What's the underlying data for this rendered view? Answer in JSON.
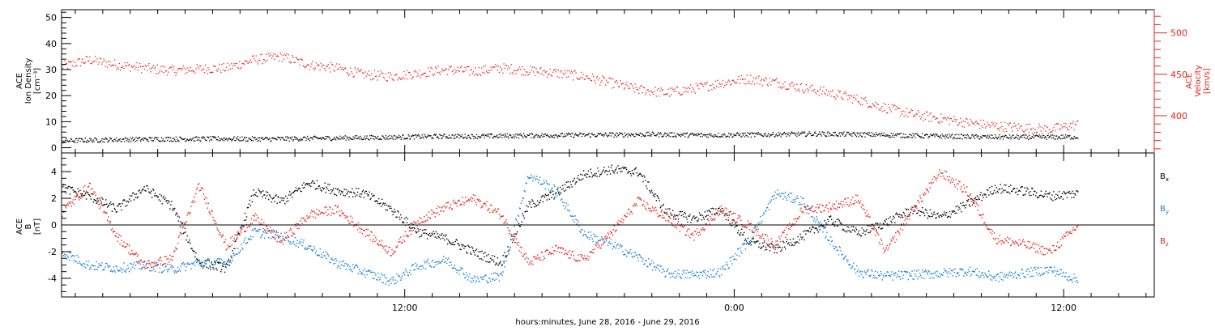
{
  "xaxis": {
    "label": "hours:minutes, June 28, 2016 - June 29, 2016",
    "range_hours": [
      -6.5,
      33.3
    ],
    "ticks": [
      {
        "value": 6,
        "label": "12:00"
      },
      {
        "value": 18,
        "label": "0:00"
      },
      {
        "value": 30,
        "label": "12:00"
      }
    ]
  },
  "colors": {
    "black": "#000000",
    "red": "#e8231d",
    "blue": "#1a7fd3"
  },
  "chart_data": [
    {
      "type": "scatter",
      "panel": "top",
      "ylabel_left": [
        "ACE",
        "Ion Density",
        "[cm⁻³]"
      ],
      "ylabel_right": [
        "ACE",
        "Velocity",
        "[km/s]"
      ],
      "ylim_left": [
        -2,
        53
      ],
      "ylim_right": [
        355,
        528
      ],
      "left_ticks": [
        0,
        10,
        20,
        30,
        40,
        50
      ],
      "right_ticks": [
        400,
        450,
        500
      ],
      "series": [
        {
          "axis": "left",
          "color": "#000000",
          "x": [
            -6.5,
            -5,
            -3,
            -1,
            1,
            3,
            5,
            7,
            9,
            11,
            13,
            15,
            17,
            19,
            21,
            23,
            25,
            27,
            29,
            30.5
          ],
          "y": [
            2.8,
            3.2,
            3.5,
            3.6,
            3.5,
            3.8,
            4.1,
            4.5,
            4.6,
            4.9,
            5.1,
            5.3,
            5.0,
            5.2,
            5.5,
            5.2,
            4.7,
            4.3,
            4.2,
            4.3
          ]
        },
        {
          "axis": "right",
          "color": "#e8231d",
          "x": [
            -6.5,
            -5.5,
            -4.5,
            -3.5,
            -2.5,
            -1.5,
            -0.5,
            0.5,
            1.5,
            2.5,
            3.5,
            4.5,
            5.5,
            6.5,
            7.5,
            8.5,
            9.5,
            10.5,
            11.5,
            12.5,
            13.5,
            14.5,
            15.5,
            16.5,
            17.5,
            18.5,
            19.5,
            20.5,
            21.5,
            22.5,
            23.5,
            24.5,
            25.5,
            26.5,
            27.5,
            28.5,
            29.5,
            30.5
          ],
          "y": [
            460,
            468,
            462,
            458,
            455,
            457,
            458,
            468,
            472,
            462,
            458,
            450,
            448,
            452,
            456,
            454,
            458,
            455,
            452,
            448,
            440,
            432,
            428,
            433,
            440,
            445,
            441,
            434,
            428,
            420,
            410,
            402,
            397,
            392,
            388,
            386,
            384,
            390
          ]
        }
      ]
    },
    {
      "type": "scatter",
      "panel": "bottom",
      "ylabel": [
        "ACE",
        "B",
        "[nT]"
      ],
      "ylim": [
        -5.4,
        5.4
      ],
      "ticks": [
        -4,
        -2,
        0,
        2,
        4
      ],
      "legend_placement": "right",
      "series": [
        {
          "name": "Bx",
          "color": "#000000",
          "x": [
            -6.5,
            -5.5,
            -4.5,
            -3.5,
            -2.5,
            -1.5,
            -0.5,
            0.5,
            1.5,
            2.5,
            3.5,
            4.5,
            5.5,
            6.5,
            7.5,
            8.5,
            9.5,
            10.5,
            11.5,
            12.5,
            13.5,
            14.5,
            15.5,
            16.5,
            17.5,
            18.5,
            19.5,
            20.5,
            21.5,
            22.5,
            23.5,
            24.5,
            25.5,
            26.5,
            27.5,
            28.5,
            29.5,
            30.5
          ],
          "y": [
            2.8,
            2.2,
            1.2,
            2.8,
            1.5,
            -2.8,
            -3.2,
            2.5,
            1.8,
            3.2,
            2.6,
            2.4,
            1.2,
            -0.5,
            -1.0,
            -2.0,
            -2.8,
            1.5,
            2.4,
            3.8,
            4.2,
            4.0,
            1.0,
            0.5,
            1.2,
            -1.2,
            -1.8,
            -0.8,
            0.4,
            -0.6,
            0.2,
            1.2,
            0.6,
            1.6,
            2.8,
            2.6,
            2.2,
            2.4
          ]
        },
        {
          "name": "By",
          "color": "#1a7fd3",
          "x": [
            -6.5,
            -5.5,
            -4.5,
            -3.5,
            -2.5,
            -1.5,
            -0.5,
            0.5,
            1.5,
            2.5,
            3.5,
            4.5,
            5.5,
            6.5,
            7.5,
            8.5,
            9.5,
            10.5,
            11.5,
            12.5,
            13.5,
            14.5,
            15.5,
            16.5,
            17.5,
            18.5,
            19.5,
            20.5,
            21.5,
            22.5,
            23.5,
            24.5,
            25.5,
            26.5,
            27.5,
            28.5,
            29.5,
            30.5
          ],
          "y": [
            -2.0,
            -3.0,
            -3.2,
            -3.0,
            -3.3,
            -2.8,
            -2.8,
            -0.5,
            -0.8,
            -1.6,
            -2.8,
            -3.5,
            -4.2,
            -3.0,
            -2.6,
            -4.1,
            -3.8,
            3.8,
            2.6,
            -0.6,
            -1.4,
            -2.4,
            -3.6,
            -3.7,
            -3.5,
            -1.2,
            2.4,
            1.8,
            -1.2,
            -3.5,
            -3.8,
            -3.7,
            -3.6,
            -3.4,
            -3.9,
            -3.6,
            -3.3,
            -4.1
          ]
        },
        {
          "name": "Bz",
          "color": "#e8231d",
          "x": [
            -6.5,
            -5.5,
            -4.5,
            -3.5,
            -2.5,
            -1.5,
            -0.5,
            0.5,
            1.5,
            2.5,
            3.5,
            4.5,
            5.5,
            6.5,
            7.5,
            8.5,
            9.5,
            10.5,
            11.5,
            12.5,
            13.5,
            14.5,
            15.5,
            16.5,
            17.5,
            18.5,
            19.5,
            20.5,
            21.5,
            22.5,
            23.5,
            24.5,
            25.5,
            26.5,
            27.5,
            28.5,
            29.5,
            30.5
          ],
          "y": [
            1.0,
            3.0,
            -0.8,
            -3.0,
            -2.5,
            3.0,
            -1.6,
            0.6,
            -1.2,
            0.8,
            1.2,
            -0.4,
            -2.0,
            0.4,
            1.4,
            2.0,
            0.8,
            -2.8,
            -1.8,
            -2.6,
            -0.6,
            1.8,
            0.6,
            -0.8,
            1.2,
            0.0,
            -1.5,
            1.2,
            1.4,
            2.0,
            -2.0,
            1.2,
            4.0,
            2.5,
            -1.0,
            -1.4,
            -2.0,
            0.0
          ]
        }
      ]
    }
  ]
}
